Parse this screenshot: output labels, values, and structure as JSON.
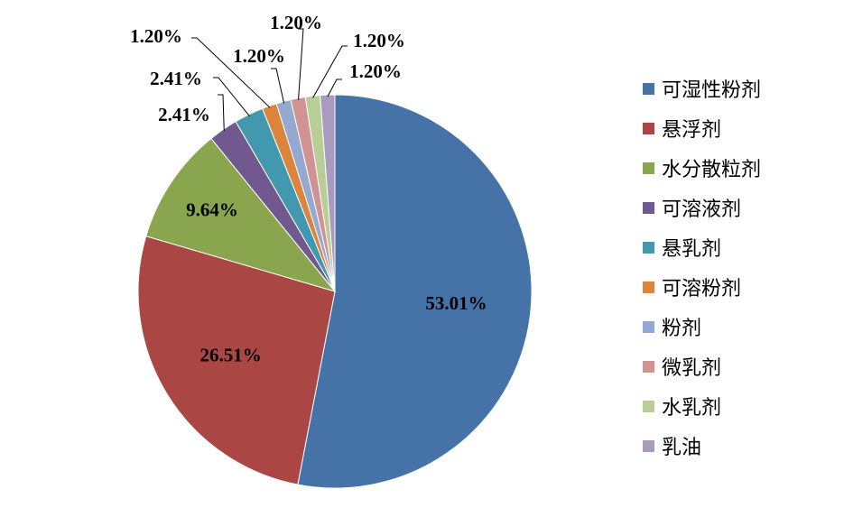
{
  "chart_data": {
    "type": "pie",
    "title": "",
    "legend_position": "right",
    "series": [
      {
        "name": "",
        "slices": [
          {
            "category": "可湿性粉剂",
            "value": 53.01,
            "label": "53.01%",
            "color": "#4572A7"
          },
          {
            "category": "悬浮剂",
            "value": 26.51,
            "label": "26.51%",
            "color": "#AA4643"
          },
          {
            "category": "水分散粒剂",
            "value": 9.64,
            "label": "9.64%",
            "color": "#89A54E"
          },
          {
            "category": "可溶液剂",
            "value": 2.41,
            "label": "2.41%",
            "color": "#71588F"
          },
          {
            "category": "悬乳剂",
            "value": 2.41,
            "label": "2.41%",
            "color": "#4198AF"
          },
          {
            "category": "可溶粉剂",
            "value": 1.2,
            "label": "1.20%",
            "color": "#DB843D"
          },
          {
            "category": "粉剂",
            "value": 1.2,
            "label": "1.20%",
            "color": "#93A9CF"
          },
          {
            "category": "微乳剂",
            "value": 1.2,
            "label": "1.20%",
            "color": "#D19392"
          },
          {
            "category": "水乳剂",
            "value": 1.2,
            "label": "1.20%",
            "color": "#B9CD96"
          },
          {
            "category": "乳油",
            "value": 1.2,
            "label": "1.20%",
            "color": "#A99BBD"
          }
        ]
      }
    ]
  }
}
